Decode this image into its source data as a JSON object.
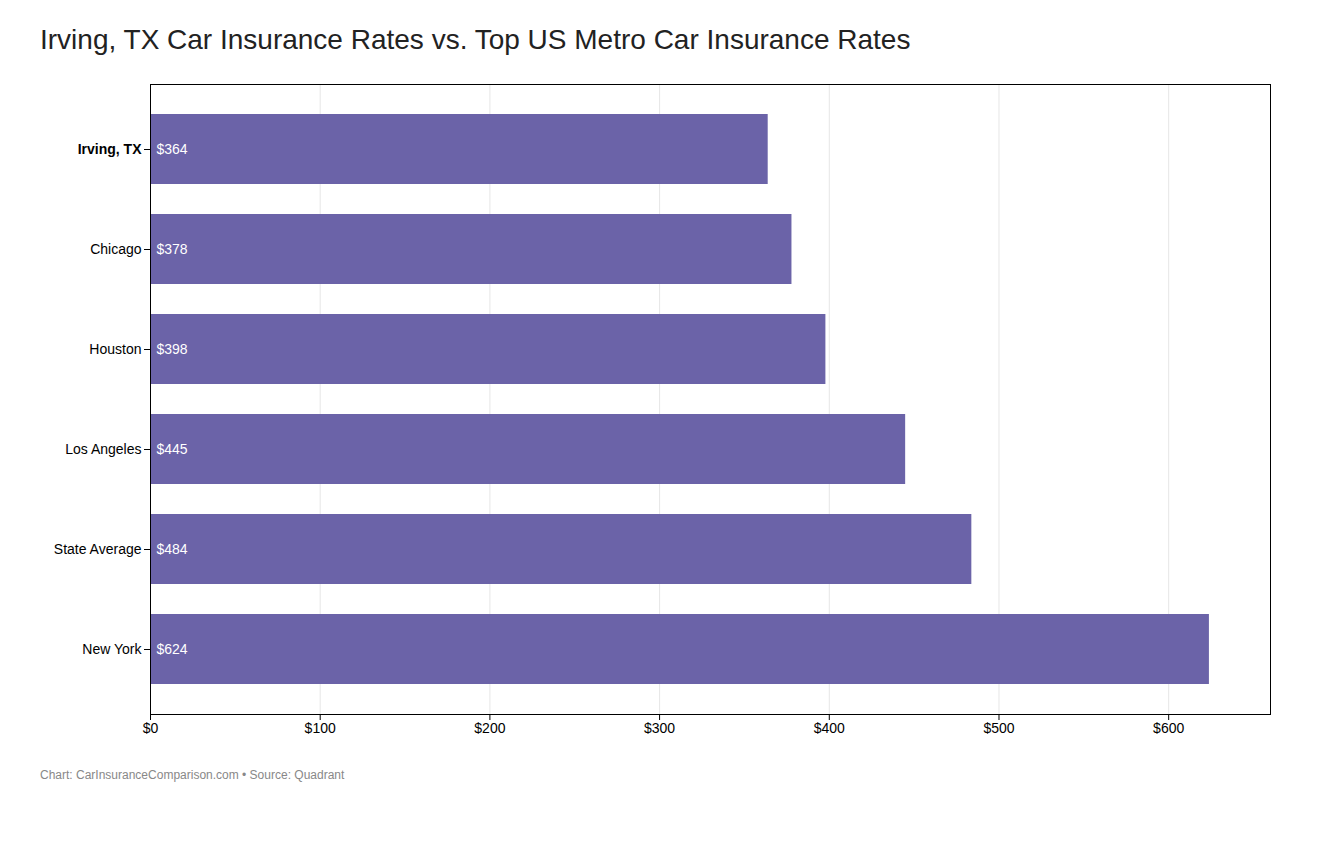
{
  "chart_data": {
    "type": "bar",
    "orientation": "horizontal",
    "title": "Irving, TX Car Insurance Rates vs. Top US Metro Car Insurance Rates",
    "annotations": [
      "Chart: CarInsuranceComparison.com • Source: Quadrant"
    ],
    "categories": [
      "Irving, TX",
      "Chicago",
      "Houston",
      "Los Angeles",
      "State Average",
      "New York"
    ],
    "values": [
      364,
      378,
      398,
      445,
      484,
      624
    ],
    "value_labels": [
      "$364",
      "$378",
      "$398",
      "$445",
      "$484",
      "$624"
    ],
    "data_labels": true,
    "color": "#6b63a8",
    "xlim": [
      0,
      660
    ],
    "xticks": [
      {
        "value": 0,
        "label": "$0"
      },
      {
        "value": 100,
        "label": "$100"
      },
      {
        "value": 200,
        "label": "$200"
      },
      {
        "value": 300,
        "label": "$300"
      },
      {
        "value": 400,
        "label": "$400"
      },
      {
        "value": 500,
        "label": "$500"
      },
      {
        "value": 600,
        "label": "$600"
      }
    ],
    "grid": true
  }
}
